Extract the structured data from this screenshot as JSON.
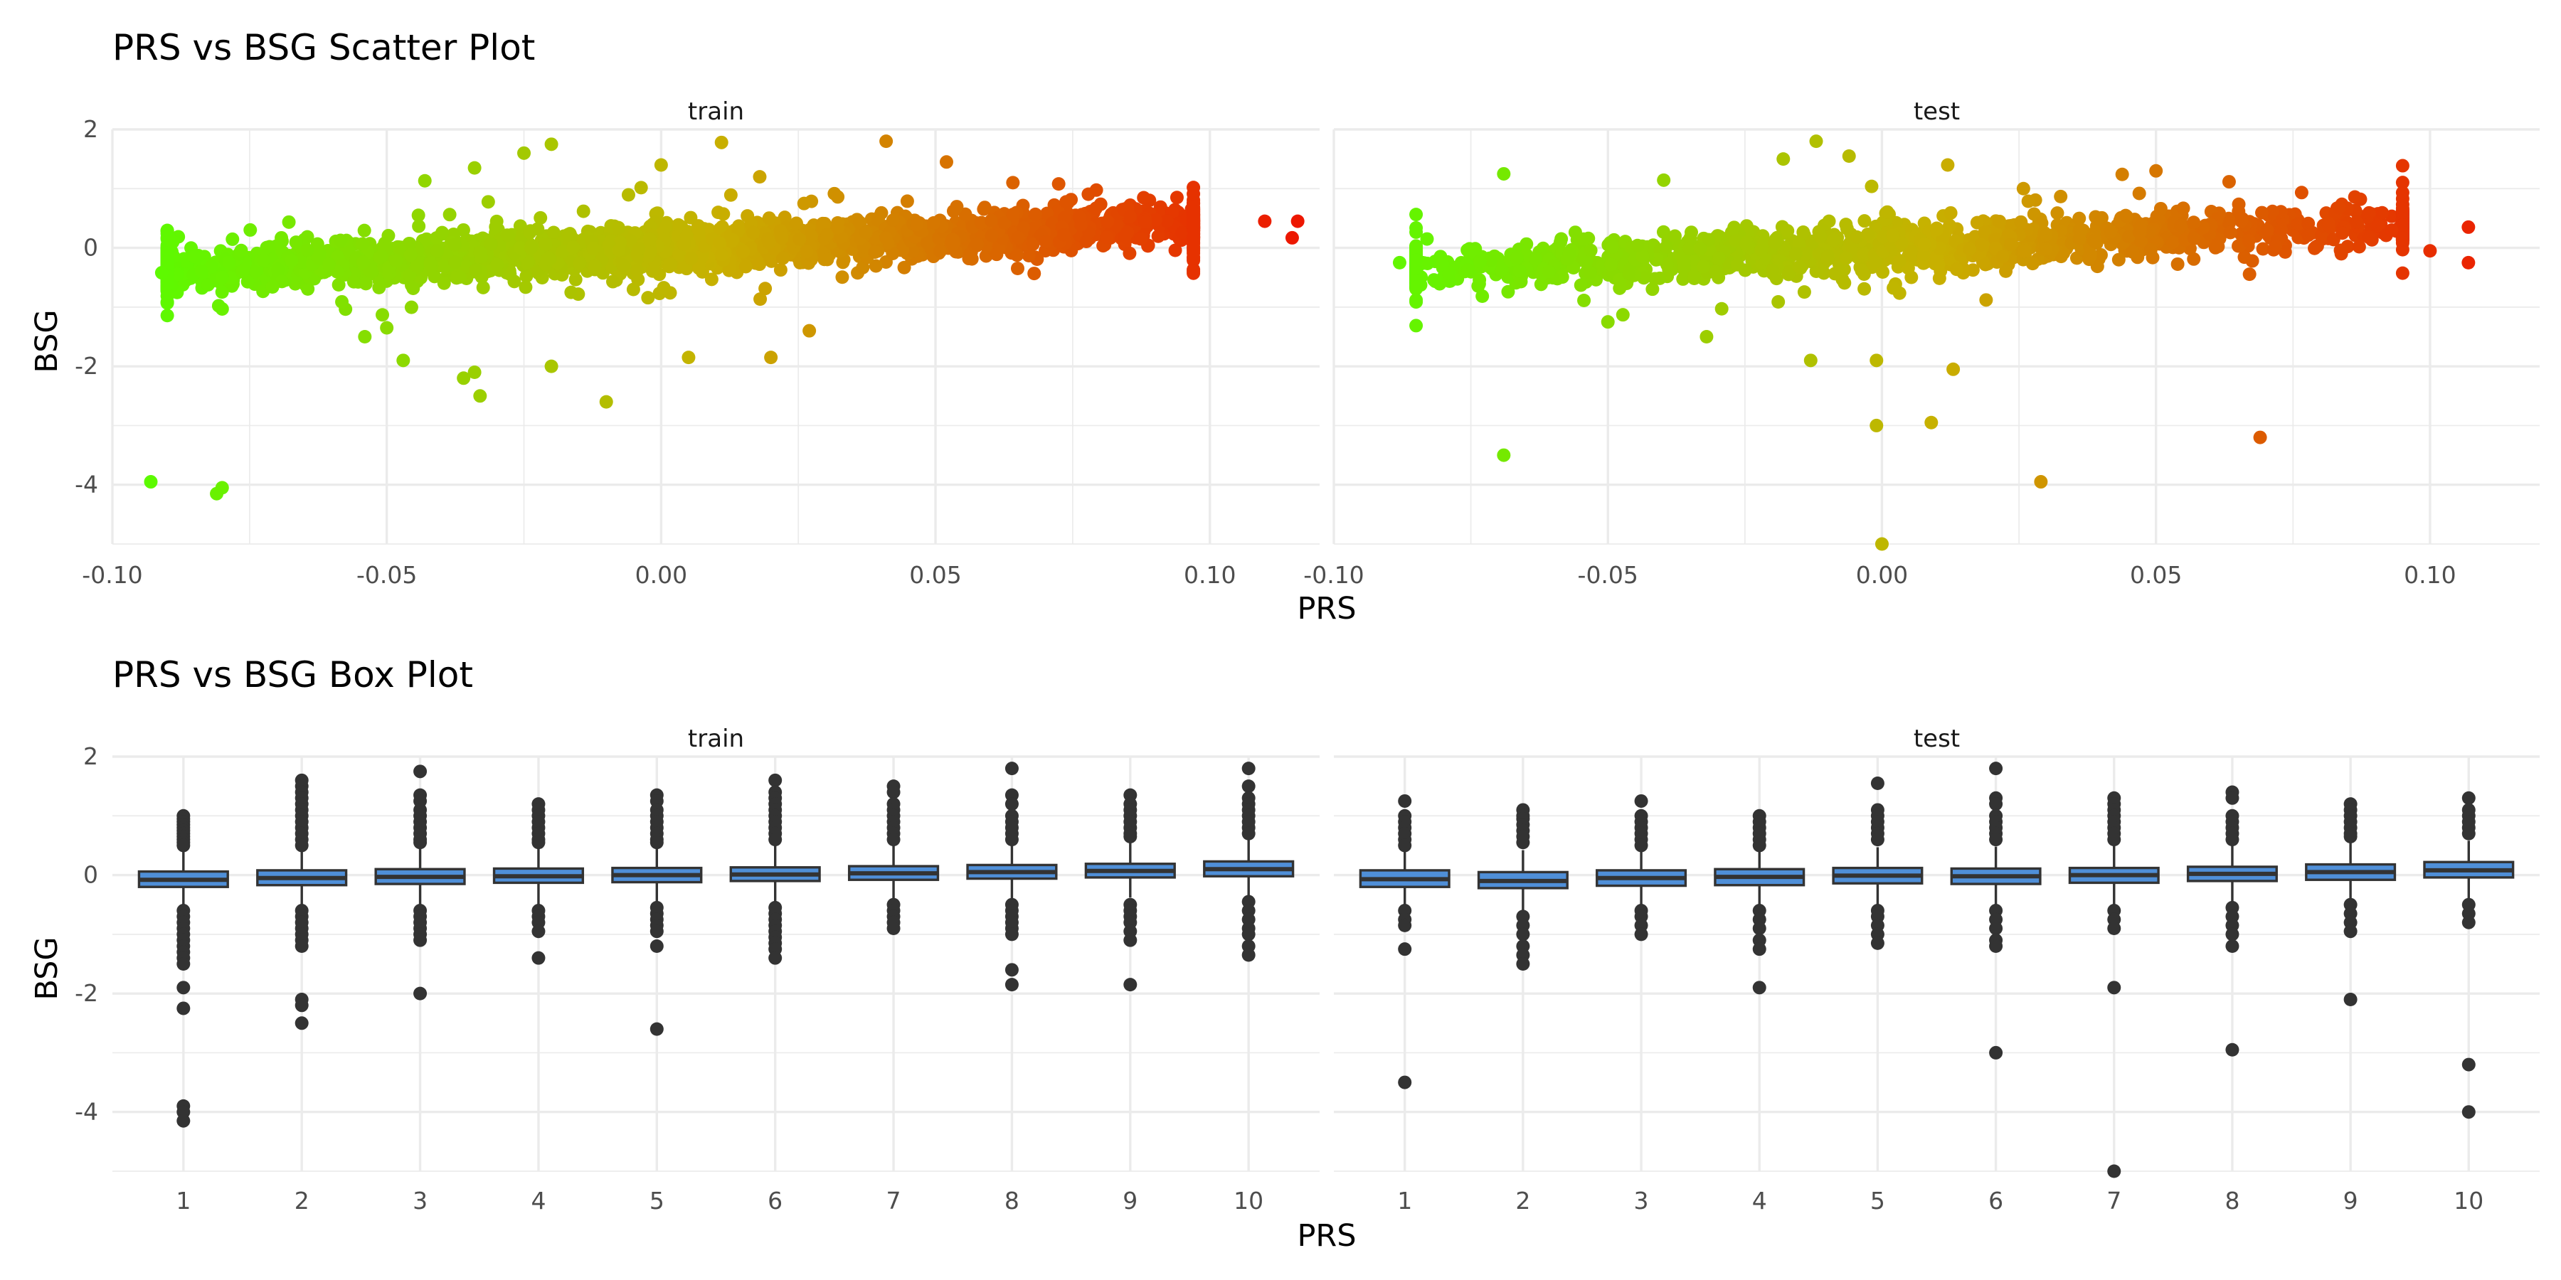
{
  "chart_data": [
    {
      "type": "scatter",
      "title": "PRS vs BSG Scatter Plot",
      "xlabel": "PRS",
      "ylabel": "BSG",
      "facets": [
        "train",
        "test"
      ],
      "xlim": [
        -0.1,
        0.12
      ],
      "ylim": [
        -5,
        2
      ],
      "x_ticks": [
        "-0.10",
        "-0.05",
        "0.00",
        "0.05",
        "0.10"
      ],
      "y_ticks": [
        "-4",
        "-2",
        "0",
        "2"
      ],
      "color_gradient": {
        "low": "#55ff00",
        "mid": "#c8b000",
        "high": "#ee1100"
      },
      "grid": true,
      "legend": "none",
      "cloud": {
        "train": {
          "x_range": [
            -0.09,
            0.097
          ],
          "slope": 4.0,
          "spread": 0.18,
          "n_points": 2600
        },
        "test": {
          "x_range": [
            -0.085,
            0.095
          ],
          "slope": 4.0,
          "spread": 0.19,
          "n_points": 1400
        }
      },
      "outliers": {
        "train": [
          {
            "x": 0.11,
            "y": 0.45
          },
          {
            "x": 0.115,
            "y": 0.17
          },
          {
            "x": 0.116,
            "y": 0.45
          },
          {
            "x": -0.093,
            "y": -3.95
          },
          {
            "x": -0.08,
            "y": -4.05
          },
          {
            "x": -0.081,
            "y": -4.15
          },
          {
            "x": -0.033,
            "y": -2.5
          },
          {
            "x": -0.01,
            "y": -2.6
          },
          {
            "x": -0.036,
            "y": -2.2
          },
          {
            "x": -0.034,
            "y": -2.1
          },
          {
            "x": -0.047,
            "y": -1.9
          },
          {
            "x": -0.02,
            "y": -2.0
          },
          {
            "x": 0.02,
            "y": -1.85
          },
          {
            "x": 0.005,
            "y": -1.85
          },
          {
            "x": 0.027,
            "y": -1.4
          },
          {
            "x": -0.054,
            "y": -1.5
          },
          {
            "x": -0.05,
            "y": -1.35
          },
          {
            "x": -0.02,
            "y": 1.75
          },
          {
            "x": 0.011,
            "y": 1.78
          },
          {
            "x": 0.041,
            "y": 1.8
          },
          {
            "x": 0.052,
            "y": 1.45
          },
          {
            "x": -0.025,
            "y": 1.6
          },
          {
            "x": -0.034,
            "y": 1.35
          },
          {
            "x": 0.0,
            "y": 1.4
          },
          {
            "x": 0.094,
            "y": 0.85
          },
          {
            "x": 0.097,
            "y": 0.18
          },
          {
            "x": -0.091,
            "y": -0.42
          },
          {
            "x": -0.089,
            "y": 0.1
          },
          {
            "x": -0.085,
            "y": -0.15
          },
          {
            "x": -0.08,
            "y": -0.5
          }
        ],
        "test": [
          {
            "x": 0.107,
            "y": 0.35
          },
          {
            "x": 0.107,
            "y": -0.25
          },
          {
            "x": 0.1,
            "y": -0.05
          },
          {
            "x": 0.093,
            "y": 0.3
          },
          {
            "x": 0.084,
            "y": 0.25
          },
          {
            "x": -0.069,
            "y": -3.5
          },
          {
            "x": 0.0,
            "y": -5.0
          },
          {
            "x": 0.029,
            "y": -3.95
          },
          {
            "x": 0.069,
            "y": -3.2
          },
          {
            "x": 0.009,
            "y": -2.95
          },
          {
            "x": -0.001,
            "y": -3.0
          },
          {
            "x": 0.013,
            "y": -2.05
          },
          {
            "x": -0.001,
            "y": -1.9
          },
          {
            "x": -0.013,
            "y": -1.9
          },
          {
            "x": -0.069,
            "y": 1.25
          },
          {
            "x": -0.018,
            "y": 1.5
          },
          {
            "x": -0.012,
            "y": 1.8
          },
          {
            "x": -0.006,
            "y": 1.55
          },
          {
            "x": 0.012,
            "y": 1.4
          },
          {
            "x": 0.05,
            "y": 1.3
          },
          {
            "x": -0.088,
            "y": -0.25
          },
          {
            "x": -0.083,
            "y": 0.15
          },
          {
            "x": -0.05,
            "y": -1.25
          },
          {
            "x": -0.032,
            "y": -1.5
          }
        ]
      }
    },
    {
      "type": "box",
      "title": "PRS vs BSG Box Plot",
      "xlabel": "PRS",
      "ylabel": "BSG",
      "facets": [
        "train",
        "test"
      ],
      "categories": [
        "1",
        "2",
        "3",
        "4",
        "5",
        "6",
        "7",
        "8",
        "9",
        "10"
      ],
      "ylim": [
        -5,
        2
      ],
      "y_ticks": [
        "-4",
        "-2",
        "0",
        "2"
      ],
      "box_fill": "#4f8fd8",
      "box_line": "#333333",
      "grid": true,
      "boxes": {
        "train": [
          {
            "q1": -0.2,
            "median": -0.08,
            "q3": 0.06,
            "lower": -0.55,
            "upper": 0.42,
            "outliers": [
              1.0,
              0.95,
              0.9,
              0.85,
              0.8,
              0.75,
              0.7,
              0.65,
              0.6,
              0.55,
              0.5,
              -0.6,
              -0.7,
              -0.8,
              -0.9,
              -1.0,
              -1.1,
              -1.2,
              -1.3,
              -1.4,
              -1.5,
              -1.9,
              -2.25,
              -3.9,
              -4.0,
              -4.15
            ]
          },
          {
            "q1": -0.17,
            "median": -0.05,
            "q3": 0.08,
            "lower": -0.55,
            "upper": 0.45,
            "outliers": [
              1.6,
              1.5,
              1.4,
              1.3,
              1.2,
              1.1,
              1.0,
              0.9,
              0.8,
              0.7,
              0.6,
              0.5,
              -0.6,
              -0.7,
              -0.8,
              -0.9,
              -1.0,
              -1.1,
              -1.2,
              -2.1,
              -2.2,
              -2.5
            ]
          },
          {
            "q1": -0.15,
            "median": -0.03,
            "q3": 0.1,
            "lower": -0.5,
            "upper": 0.47,
            "outliers": [
              1.75,
              1.35,
              1.25,
              1.1,
              1.0,
              0.9,
              0.8,
              0.7,
              0.6,
              0.55,
              -0.6,
              -0.7,
              -0.8,
              -0.9,
              -1.0,
              -1.1,
              -2.0
            ]
          },
          {
            "q1": -0.13,
            "median": -0.02,
            "q3": 0.11,
            "lower": -0.5,
            "upper": 0.47,
            "outliers": [
              1.2,
              1.1,
              1.0,
              0.9,
              0.8,
              0.7,
              0.6,
              0.55,
              -0.6,
              -0.7,
              -0.8,
              -0.95,
              -1.4
            ]
          },
          {
            "q1": -0.12,
            "median": 0.0,
            "q3": 0.12,
            "lower": -0.47,
            "upper": 0.48,
            "outliers": [
              1.35,
              1.25,
              1.1,
              1.0,
              0.9,
              0.8,
              0.7,
              0.6,
              0.55,
              -0.55,
              -0.65,
              -0.75,
              -0.85,
              -0.95,
              -1.2,
              -2.6
            ]
          },
          {
            "q1": -0.1,
            "median": 0.01,
            "q3": 0.13,
            "lower": -0.45,
            "upper": 0.5,
            "outliers": [
              1.6,
              1.4,
              1.3,
              1.2,
              1.1,
              1.0,
              0.9,
              0.8,
              0.7,
              0.6,
              -0.55,
              -0.65,
              -0.75,
              -0.85,
              -0.95,
              -1.05,
              -1.15,
              -1.25,
              -1.4
            ]
          },
          {
            "q1": -0.08,
            "median": 0.03,
            "q3": 0.15,
            "lower": -0.42,
            "upper": 0.5,
            "outliers": [
              1.5,
              1.4,
              1.2,
              1.1,
              1.0,
              0.9,
              0.8,
              0.7,
              0.6,
              -0.5,
              -0.6,
              -0.7,
              -0.8,
              -0.9
            ]
          },
          {
            "q1": -0.06,
            "median": 0.05,
            "q3": 0.17,
            "lower": -0.4,
            "upper": 0.52,
            "outliers": [
              1.8,
              1.35,
              1.2,
              1.0,
              0.9,
              0.8,
              0.7,
              0.6,
              -0.5,
              -0.6,
              -0.7,
              -0.8,
              -0.9,
              -1.0,
              -1.6,
              -1.85
            ]
          },
          {
            "q1": -0.04,
            "median": 0.07,
            "q3": 0.19,
            "lower": -0.38,
            "upper": 0.55,
            "outliers": [
              1.35,
              1.2,
              1.1,
              1.0,
              0.9,
              0.8,
              0.7,
              0.65,
              -0.5,
              -0.6,
              -0.7,
              -0.8,
              -0.95,
              -1.1,
              -1.85
            ]
          },
          {
            "q1": -0.02,
            "median": 0.1,
            "q3": 0.23,
            "lower": -0.35,
            "upper": 0.6,
            "outliers": [
              1.8,
              1.5,
              1.3,
              1.2,
              1.1,
              1.0,
              0.9,
              0.8,
              0.7,
              -0.45,
              -0.6,
              -0.75,
              -0.9,
              -1.0,
              -1.2,
              -1.35
            ]
          }
        ],
        "test": [
          {
            "q1": -0.2,
            "median": -0.07,
            "q3": 0.08,
            "lower": -0.55,
            "upper": 0.4,
            "outliers": [
              1.25,
              1.0,
              0.9,
              0.8,
              0.7,
              0.6,
              0.5,
              -0.6,
              -0.75,
              -0.85,
              -1.25,
              -3.5
            ]
          },
          {
            "q1": -0.22,
            "median": -0.1,
            "q3": 0.05,
            "lower": -0.6,
            "upper": 0.42,
            "outliers": [
              1.1,
              1.0,
              0.95,
              0.85,
              0.75,
              0.65,
              0.55,
              -0.7,
              -0.85,
              -1.0,
              -1.2,
              -1.35,
              -1.5
            ]
          },
          {
            "q1": -0.18,
            "median": -0.05,
            "q3": 0.08,
            "lower": -0.55,
            "upper": 0.42,
            "outliers": [
              1.25,
              1.0,
              0.9,
              0.8,
              0.7,
              0.6,
              0.5,
              -0.6,
              -0.7,
              -0.85,
              -1.0
            ]
          },
          {
            "q1": -0.17,
            "median": -0.03,
            "q3": 0.1,
            "lower": -0.55,
            "upper": 0.45,
            "outliers": [
              1.0,
              0.9,
              0.8,
              0.7,
              0.6,
              0.5,
              -0.6,
              -0.75,
              -0.9,
              -1.1,
              -1.25,
              -1.9
            ]
          },
          {
            "q1": -0.14,
            "median": -0.01,
            "q3": 0.12,
            "lower": -0.5,
            "upper": 0.47,
            "outliers": [
              1.55,
              1.1,
              1.0,
              0.9,
              0.8,
              0.7,
              0.6,
              -0.6,
              -0.7,
              -0.85,
              -1.0,
              -1.15
            ]
          },
          {
            "q1": -0.15,
            "median": -0.02,
            "q3": 0.11,
            "lower": -0.55,
            "upper": 0.48,
            "outliers": [
              1.8,
              1.3,
              1.2,
              1.0,
              0.9,
              0.8,
              0.7,
              0.6,
              -0.6,
              -0.75,
              -0.9,
              -1.1,
              -1.2,
              -3.0
            ]
          },
          {
            "q1": -0.13,
            "median": 0.0,
            "q3": 0.12,
            "lower": -0.5,
            "upper": 0.5,
            "outliers": [
              1.3,
              1.2,
              1.1,
              1.0,
              0.9,
              0.8,
              0.7,
              0.6,
              -0.6,
              -0.75,
              -0.9,
              -1.9,
              -5.0
            ]
          },
          {
            "q1": -0.1,
            "median": 0.02,
            "q3": 0.14,
            "lower": -0.45,
            "upper": 0.5,
            "outliers": [
              1.4,
              1.3,
              1.0,
              0.9,
              0.8,
              0.7,
              0.6,
              -0.55,
              -0.7,
              -0.85,
              -1.0,
              -1.2,
              -2.95
            ]
          },
          {
            "q1": -0.08,
            "median": 0.05,
            "q3": 0.18,
            "lower": -0.42,
            "upper": 0.55,
            "outliers": [
              1.2,
              1.1,
              1.0,
              0.9,
              0.8,
              0.7,
              0.65,
              -0.5,
              -0.65,
              -0.8,
              -0.95,
              -2.1
            ]
          },
          {
            "q1": -0.04,
            "median": 0.08,
            "q3": 0.22,
            "lower": -0.4,
            "upper": 0.58,
            "outliers": [
              1.3,
              1.1,
              1.0,
              0.9,
              0.8,
              0.7,
              -0.5,
              -0.65,
              -0.8,
              -3.2,
              -4.0
            ]
          }
        ]
      }
    }
  ]
}
